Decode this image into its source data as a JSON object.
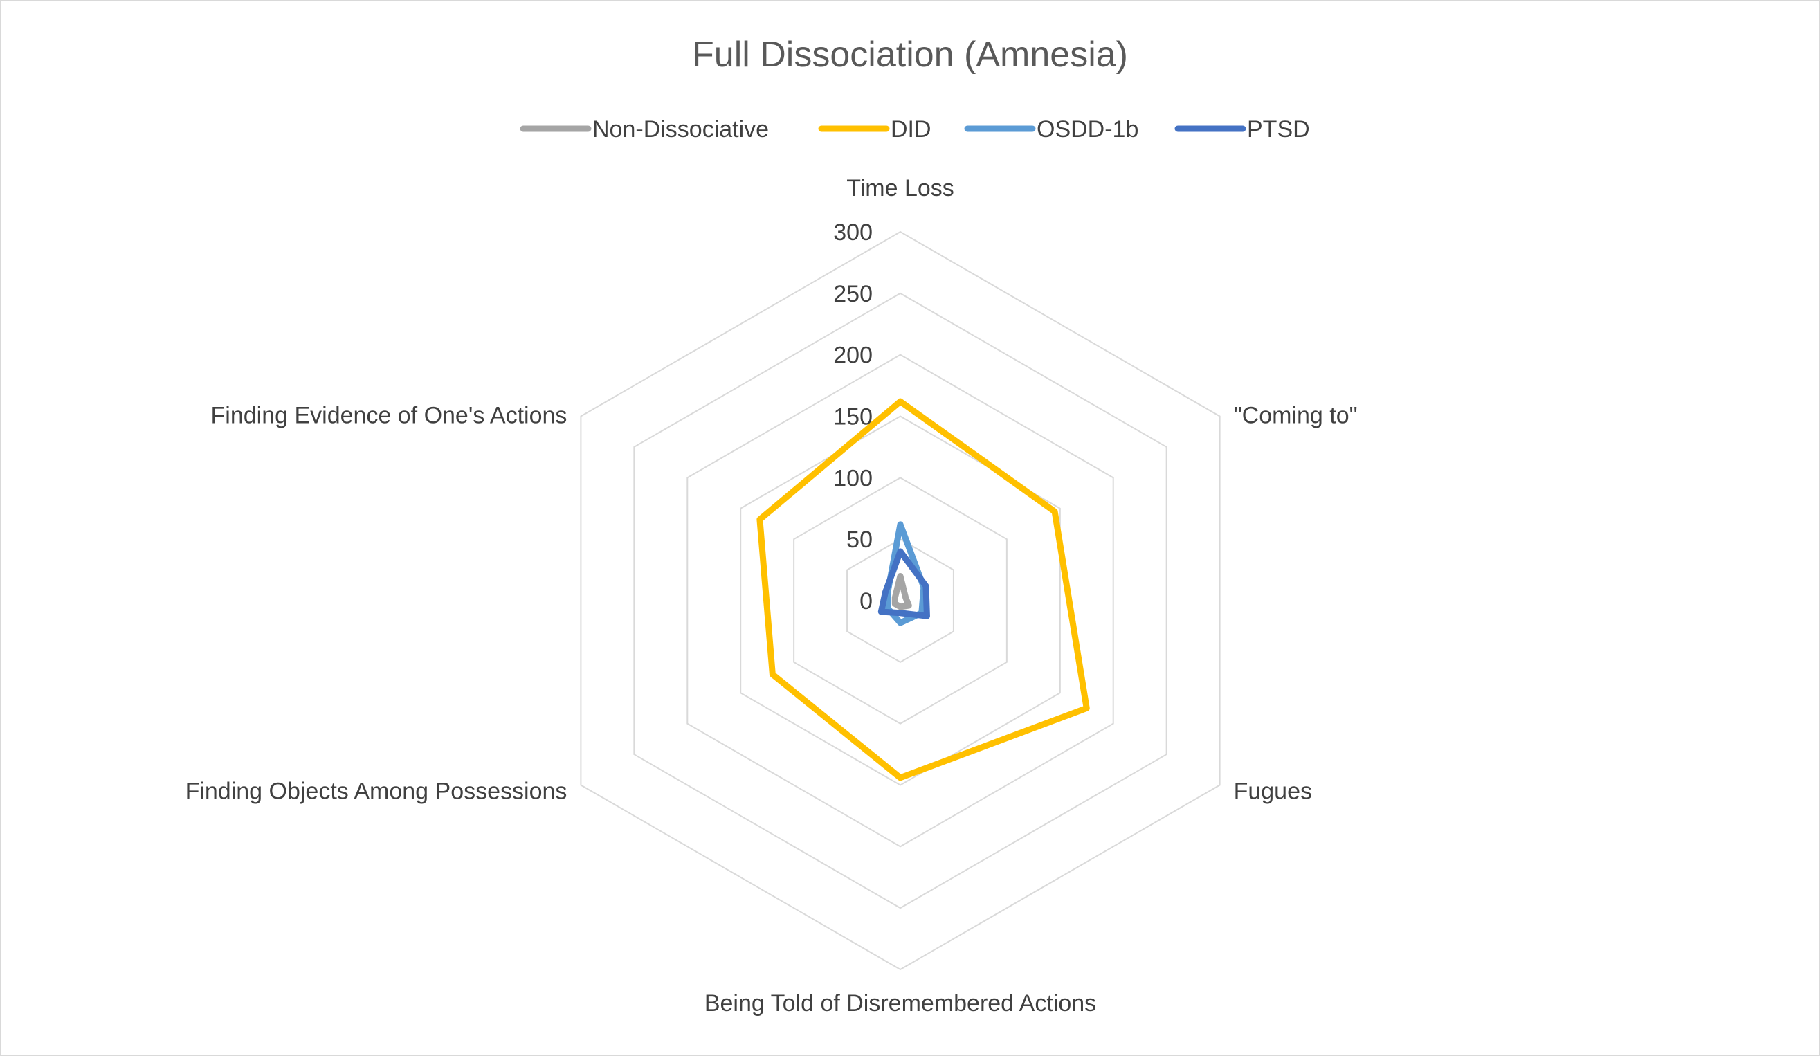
{
  "chart_data": {
    "type": "radar",
    "title": "Full Dissociation (Amnesia)",
    "categories": [
      "Time Loss",
      "\"Coming to\"",
      "Fugues",
      "Being Told of Disremembered Actions",
      "Finding Objects Among Possessions",
      "Finding Evidence of One's Actions"
    ],
    "rlim": [
      0,
      300
    ],
    "ticks": [
      "0",
      "50",
      "100",
      "150",
      "200",
      "250",
      "300"
    ],
    "grid": true,
    "legend_position": "top",
    "series": [
      {
        "name": "Non-Dissociative",
        "color": "#a5a5a5",
        "values": [
          20,
          5,
          8,
          5,
          5,
          5
        ]
      },
      {
        "name": "DID",
        "color": "#ffc000",
        "values": [
          162,
          145,
          175,
          144,
          120,
          132
        ]
      },
      {
        "name": "OSDD-1b",
        "color": "#5b9bd5",
        "values": [
          62,
          22,
          20,
          18,
          12,
          12
        ]
      },
      {
        "name": "PTSD",
        "color": "#4472c4",
        "values": [
          40,
          24,
          25,
          10,
          18,
          14
        ]
      }
    ]
  }
}
